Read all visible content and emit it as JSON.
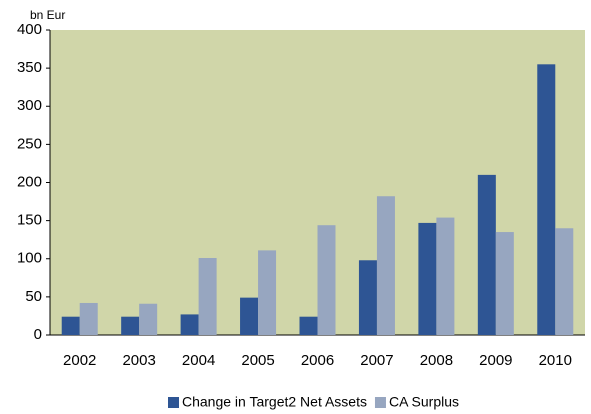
{
  "chart_data": {
    "type": "bar",
    "y_unit_label": "bn Eur",
    "categories": [
      "2002",
      "2003",
      "2004",
      "2005",
      "2006",
      "2007",
      "2008",
      "2009",
      "2010"
    ],
    "series": [
      {
        "name": "Change in Target2 Net Assets",
        "color": "#2e5594",
        "values": [
          24,
          24,
          27,
          49,
          24,
          98,
          147,
          210,
          355
        ]
      },
      {
        "name": "CA Surplus",
        "color": "#97a6c0",
        "values": [
          42,
          41,
          101,
          111,
          144,
          182,
          154,
          135,
          140
        ]
      }
    ],
    "ylim": [
      0,
      400
    ],
    "yticks": [
      0,
      50,
      100,
      150,
      200,
      250,
      300,
      350,
      400
    ],
    "plot_background": "#d0d6a9",
    "legend": "bottom"
  }
}
